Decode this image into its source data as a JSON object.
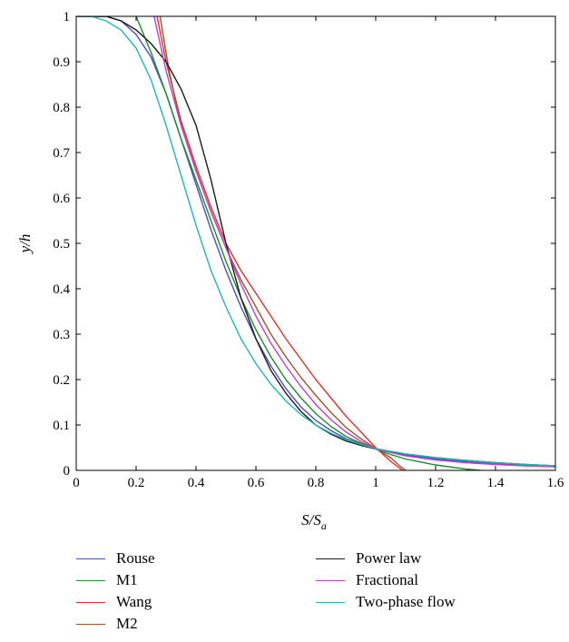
{
  "chart_data": {
    "type": "line",
    "xlabel_main": "S/S",
    "xlabel_sub": "a",
    "ylabel": "y/h",
    "xlim": [
      0,
      1.6
    ],
    "ylim": [
      0,
      1
    ],
    "x_ticks": [
      "0",
      "0.2",
      "0.4",
      "0.6",
      "0.8",
      "1",
      "1.2",
      "1.4",
      "1.6"
    ],
    "y_ticks": [
      "0",
      "0.1",
      "0.2",
      "0.3",
      "0.4",
      "0.5",
      "0.6",
      "0.7",
      "0.8",
      "0.9",
      "1"
    ],
    "grid": false,
    "legend_position": "below",
    "series": [
      {
        "name": "Rouse",
        "color": "#4a4fc0",
        "points": [
          [
            0,
            1
          ],
          [
            0.1,
            1
          ],
          [
            0.15,
            0.99
          ],
          [
            0.2,
            0.96
          ],
          [
            0.25,
            0.91
          ],
          [
            0.3,
            0.83
          ],
          [
            0.35,
            0.73
          ],
          [
            0.4,
            0.63
          ],
          [
            0.45,
            0.53
          ],
          [
            0.5,
            0.44
          ],
          [
            0.55,
            0.36
          ],
          [
            0.6,
            0.29
          ],
          [
            0.65,
            0.23
          ],
          [
            0.7,
            0.18
          ],
          [
            0.75,
            0.14
          ],
          [
            0.8,
            0.11
          ],
          [
            0.85,
            0.088
          ],
          [
            0.9,
            0.07
          ],
          [
            0.95,
            0.058
          ],
          [
            1.0,
            0.047
          ],
          [
            1.1,
            0.034
          ],
          [
            1.2,
            0.025
          ],
          [
            1.3,
            0.019
          ],
          [
            1.4,
            0.014
          ],
          [
            1.5,
            0.011
          ],
          [
            1.6,
            0.008
          ]
        ]
      },
      {
        "name": "M1",
        "color": "#1e8a2e",
        "points": [
          [
            0.2,
            1
          ],
          [
            0.25,
            0.92
          ],
          [
            0.3,
            0.83
          ],
          [
            0.35,
            0.73
          ],
          [
            0.4,
            0.64
          ],
          [
            0.45,
            0.55
          ],
          [
            0.5,
            0.46
          ],
          [
            0.55,
            0.38
          ],
          [
            0.6,
            0.31
          ],
          [
            0.65,
            0.25
          ],
          [
            0.7,
            0.2
          ],
          [
            0.75,
            0.16
          ],
          [
            0.8,
            0.125
          ],
          [
            0.85,
            0.097
          ],
          [
            0.9,
            0.075
          ],
          [
            0.95,
            0.06
          ],
          [
            1.0,
            0.047
          ],
          [
            1.05,
            0.035
          ],
          [
            1.1,
            0.025
          ],
          [
            1.2,
            0.012
          ],
          [
            1.3,
            0.003
          ],
          [
            1.35,
            0
          ]
        ]
      },
      {
        "name": "Wang",
        "color": "#e0302a",
        "points": [
          [
            0.27,
            1
          ],
          [
            0.3,
            0.9
          ],
          [
            0.35,
            0.77
          ],
          [
            0.4,
            0.67
          ],
          [
            0.45,
            0.58
          ],
          [
            0.5,
            0.5
          ],
          [
            0.55,
            0.44
          ],
          [
            0.6,
            0.39
          ],
          [
            0.65,
            0.34
          ],
          [
            0.7,
            0.29
          ],
          [
            0.75,
            0.245
          ],
          [
            0.8,
            0.2
          ],
          [
            0.85,
            0.16
          ],
          [
            0.9,
            0.12
          ],
          [
            0.95,
            0.085
          ],
          [
            1.0,
            0.05
          ],
          [
            1.05,
            0.02
          ],
          [
            1.09,
            0
          ]
        ]
      },
      {
        "name": "M2",
        "color": "#a0522d",
        "points": [
          [
            0.28,
            1
          ],
          [
            0.31,
            0.88
          ],
          [
            0.35,
            0.76
          ],
          [
            0.4,
            0.66
          ],
          [
            0.45,
            0.57
          ],
          [
            0.5,
            0.49
          ],
          [
            0.55,
            0.42
          ],
          [
            0.6,
            0.36
          ],
          [
            0.65,
            0.3
          ],
          [
            0.7,
            0.25
          ],
          [
            0.75,
            0.205
          ],
          [
            0.8,
            0.165
          ],
          [
            0.85,
            0.128
          ],
          [
            0.9,
            0.095
          ],
          [
            0.95,
            0.07
          ],
          [
            1.0,
            0.048
          ],
          [
            1.05,
            0.028
          ],
          [
            1.08,
            0.01
          ],
          [
            1.1,
            0
          ]
        ]
      },
      {
        "name": "Power law",
        "color": "#1a1a1a",
        "points": [
          [
            0,
            1
          ],
          [
            0.05,
            1
          ],
          [
            0.1,
            1
          ],
          [
            0.15,
            0.99
          ],
          [
            0.2,
            0.97
          ],
          [
            0.25,
            0.94
          ],
          [
            0.3,
            0.9
          ],
          [
            0.35,
            0.84
          ],
          [
            0.4,
            0.76
          ],
          [
            0.45,
            0.64
          ],
          [
            0.5,
            0.5
          ],
          [
            0.55,
            0.38
          ],
          [
            0.6,
            0.29
          ],
          [
            0.65,
            0.22
          ],
          [
            0.7,
            0.17
          ],
          [
            0.75,
            0.13
          ],
          [
            0.8,
            0.1
          ],
          [
            0.85,
            0.08
          ],
          [
            0.9,
            0.065
          ],
          [
            0.95,
            0.055
          ],
          [
            1.0,
            0.047
          ],
          [
            1.1,
            0.036
          ],
          [
            1.2,
            0.028
          ],
          [
            1.3,
            0.022
          ],
          [
            1.4,
            0.017
          ],
          [
            1.5,
            0.013
          ],
          [
            1.6,
            0.01
          ]
        ]
      },
      {
        "name": "Fractional",
        "color": "#c040c0",
        "points": [
          [
            0.26,
            1
          ],
          [
            0.3,
            0.88
          ],
          [
            0.35,
            0.76
          ],
          [
            0.4,
            0.66
          ],
          [
            0.45,
            0.57
          ],
          [
            0.5,
            0.49
          ],
          [
            0.55,
            0.41
          ],
          [
            0.6,
            0.34
          ],
          [
            0.65,
            0.28
          ],
          [
            0.7,
            0.23
          ],
          [
            0.75,
            0.185
          ],
          [
            0.8,
            0.145
          ],
          [
            0.85,
            0.112
          ],
          [
            0.9,
            0.085
          ],
          [
            0.95,
            0.064
          ],
          [
            1.0,
            0.047
          ],
          [
            1.1,
            0.032
          ],
          [
            1.2,
            0.023
          ],
          [
            1.3,
            0.017
          ],
          [
            1.4,
            0.013
          ],
          [
            1.5,
            0.01
          ],
          [
            1.6,
            0.008
          ]
        ]
      },
      {
        "name": "Two-phase flow",
        "color": "#1fb8b0",
        "points": [
          [
            0,
            1
          ],
          [
            0.05,
            1
          ],
          [
            0.1,
            0.99
          ],
          [
            0.15,
            0.97
          ],
          [
            0.2,
            0.93
          ],
          [
            0.25,
            0.86
          ],
          [
            0.3,
            0.76
          ],
          [
            0.35,
            0.65
          ],
          [
            0.4,
            0.54
          ],
          [
            0.45,
            0.44
          ],
          [
            0.5,
            0.36
          ],
          [
            0.55,
            0.29
          ],
          [
            0.6,
            0.235
          ],
          [
            0.65,
            0.19
          ],
          [
            0.7,
            0.153
          ],
          [
            0.75,
            0.123
          ],
          [
            0.8,
            0.1
          ],
          [
            0.85,
            0.082
          ],
          [
            0.9,
            0.068
          ],
          [
            0.95,
            0.057
          ],
          [
            1.0,
            0.048
          ],
          [
            1.1,
            0.036
          ],
          [
            1.2,
            0.028
          ],
          [
            1.3,
            0.022
          ],
          [
            1.4,
            0.017
          ],
          [
            1.5,
            0.013
          ],
          [
            1.6,
            0.01
          ]
        ]
      }
    ]
  }
}
